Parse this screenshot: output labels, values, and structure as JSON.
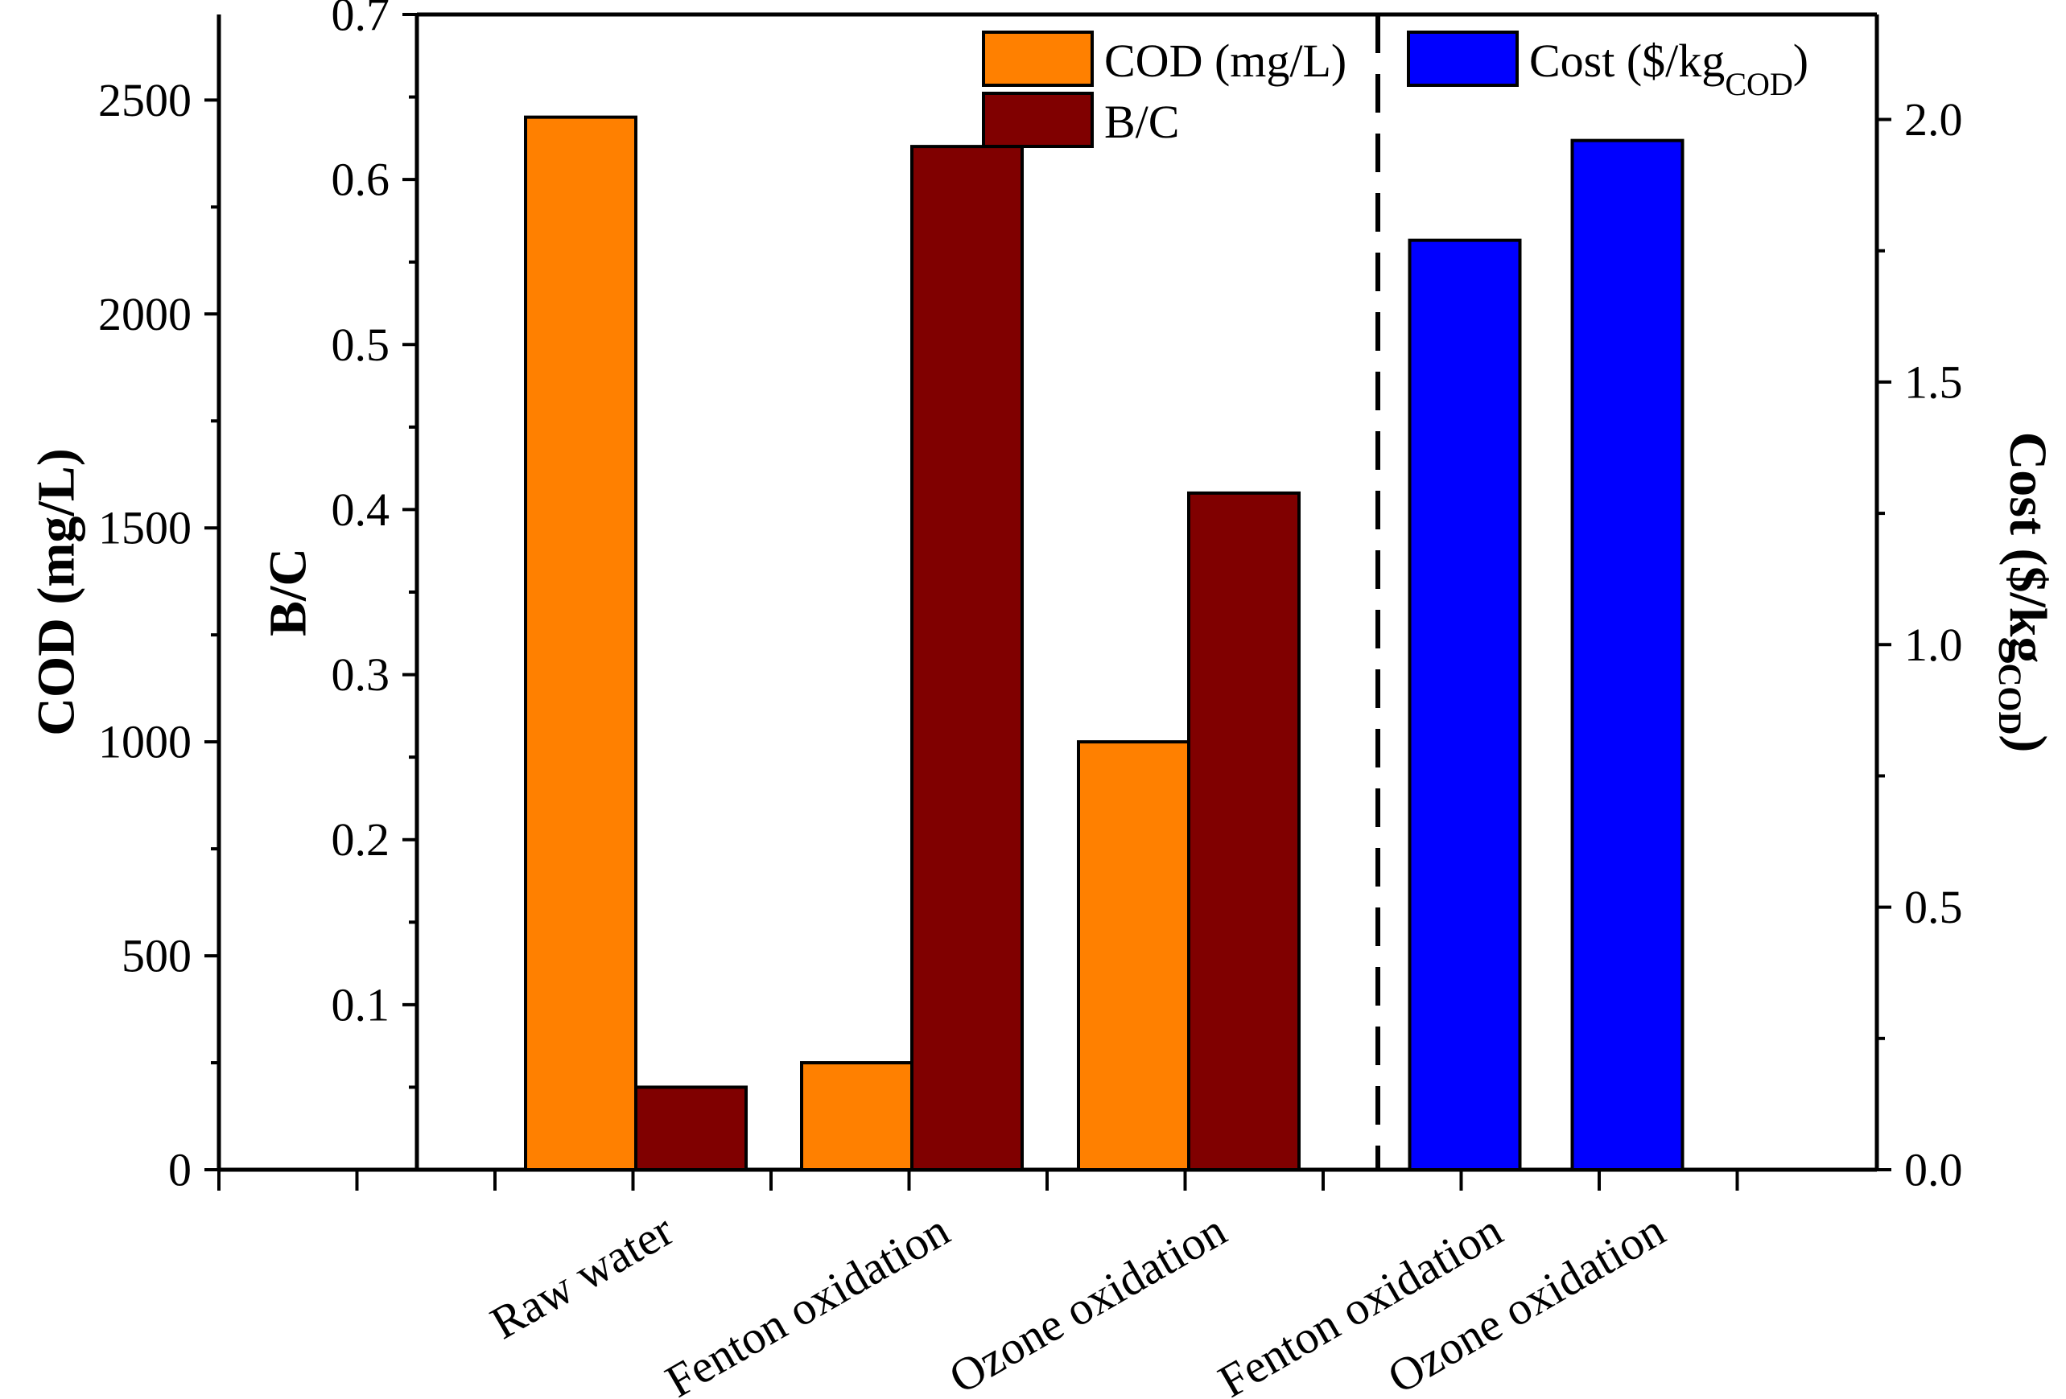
{
  "chart_data": {
    "type": "bar",
    "title": "",
    "left_axis": {
      "label": "COD (mg/L)",
      "ylim": [
        0,
        2700
      ],
      "ticks": [
        0,
        500,
        1000,
        1500,
        2000,
        2500
      ],
      "tick_labels": [
        "0",
        "500",
        "1000",
        "1500",
        "2000",
        "2500"
      ]
    },
    "inner_axis": {
      "label": "B/C",
      "ylim": [
        0,
        0.7
      ],
      "ticks": [
        0.1,
        0.2,
        0.3,
        0.4,
        0.5,
        0.6,
        0.7
      ],
      "tick_labels": [
        "0.1",
        "0.2",
        "0.3",
        "0.4",
        "0.5",
        "0.6",
        "0.7"
      ]
    },
    "right_axis": {
      "label_main": "Cost ($/kg",
      "label_sub": "COD",
      "label_end": ")",
      "ylim": [
        0,
        2.2
      ],
      "ticks": [
        0.0,
        0.5,
        1.0,
        1.5,
        2.0
      ],
      "tick_labels": [
        "0.0",
        "0.5",
        "1.0",
        "1.5",
        "2.0"
      ]
    },
    "categories": [
      "Raw water",
      "Fenton oxidation",
      "Ozone oxidation",
      "Fenton oxidation",
      "Ozone oxidation"
    ],
    "series": [
      {
        "name": "COD (mg/L)",
        "axis": "left",
        "color": "#FF8000",
        "values": [
          2460,
          250,
          1000,
          null,
          null
        ]
      },
      {
        "name": "B/C",
        "axis": "inner",
        "color": "#800000",
        "values": [
          0.05,
          0.62,
          0.41,
          null,
          null
        ]
      },
      {
        "name": "Cost ($/kgCOD)",
        "axis": "right",
        "color": "#0000FF",
        "values": [
          null,
          null,
          null,
          1.77,
          1.96
        ]
      }
    ],
    "legend": [
      {
        "label": "COD (mg/L)",
        "color": "#FF8000"
      },
      {
        "label": "B/C",
        "color": "#800000"
      },
      {
        "label_main": "Cost ($/kg",
        "label_sub": "COD",
        "label_end": ")",
        "color": "#0000FF"
      }
    ],
    "legend_position": "top",
    "separator": "dashed vertical line between the two groups",
    "grid": false
  }
}
